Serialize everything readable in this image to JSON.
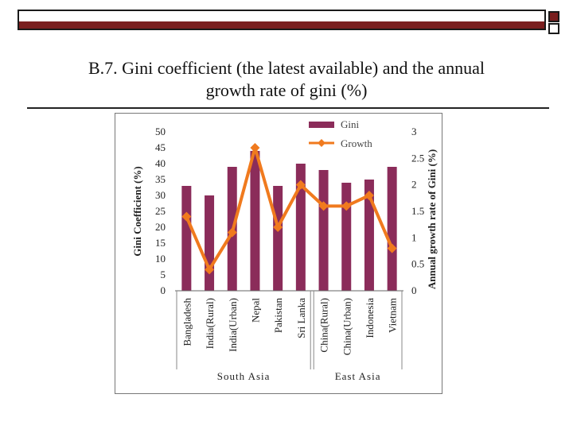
{
  "slide": {
    "title_line1": "B.7. Gini coefficient (the latest available) and the annual",
    "title_line2": "growth rate of gini (%)"
  },
  "colors": {
    "bar": "#8b2c5a",
    "line": "#f07a1e",
    "band": "#7a1f1f"
  },
  "chart_data": {
    "type": "bar",
    "title": "",
    "categories": [
      "Bangladesh",
      "India(Rural)",
      "India(Urban)",
      "Nepal",
      "Pakistan",
      "Sri Lanka",
      "China(Rural)",
      "China(Urban)",
      "Indonesia",
      "Vietnam"
    ],
    "groups": [
      {
        "label": "South Asia",
        "from": 0,
        "to": 5
      },
      {
        "label": "East Asia",
        "from": 6,
        "to": 9
      }
    ],
    "series": [
      {
        "name": "Gini",
        "type": "bar",
        "axis": "left",
        "values": [
          33,
          30,
          39,
          44,
          33,
          40,
          38,
          34,
          35,
          39
        ]
      },
      {
        "name": "Growth",
        "type": "line",
        "axis": "right",
        "values": [
          1.4,
          0.4,
          1.1,
          2.7,
          1.2,
          2.0,
          1.6,
          1.6,
          1.8,
          0.8
        ]
      }
    ],
    "ylabel_left": "Gini Coefficient (%)",
    "ylabel_right": "Annual growth rate of Gini (%)",
    "ylim_left": [
      0,
      50
    ],
    "ylim_right": [
      0,
      3
    ],
    "yticks_left": [
      "0",
      "5",
      "10",
      "15",
      "20",
      "25",
      "30",
      "35",
      "40",
      "45",
      "50"
    ],
    "yticks_right": [
      "0",
      "0.5",
      "1",
      "1.5",
      "2",
      "2.5",
      "3"
    ],
    "legend_position": "top-right",
    "grid": false
  }
}
